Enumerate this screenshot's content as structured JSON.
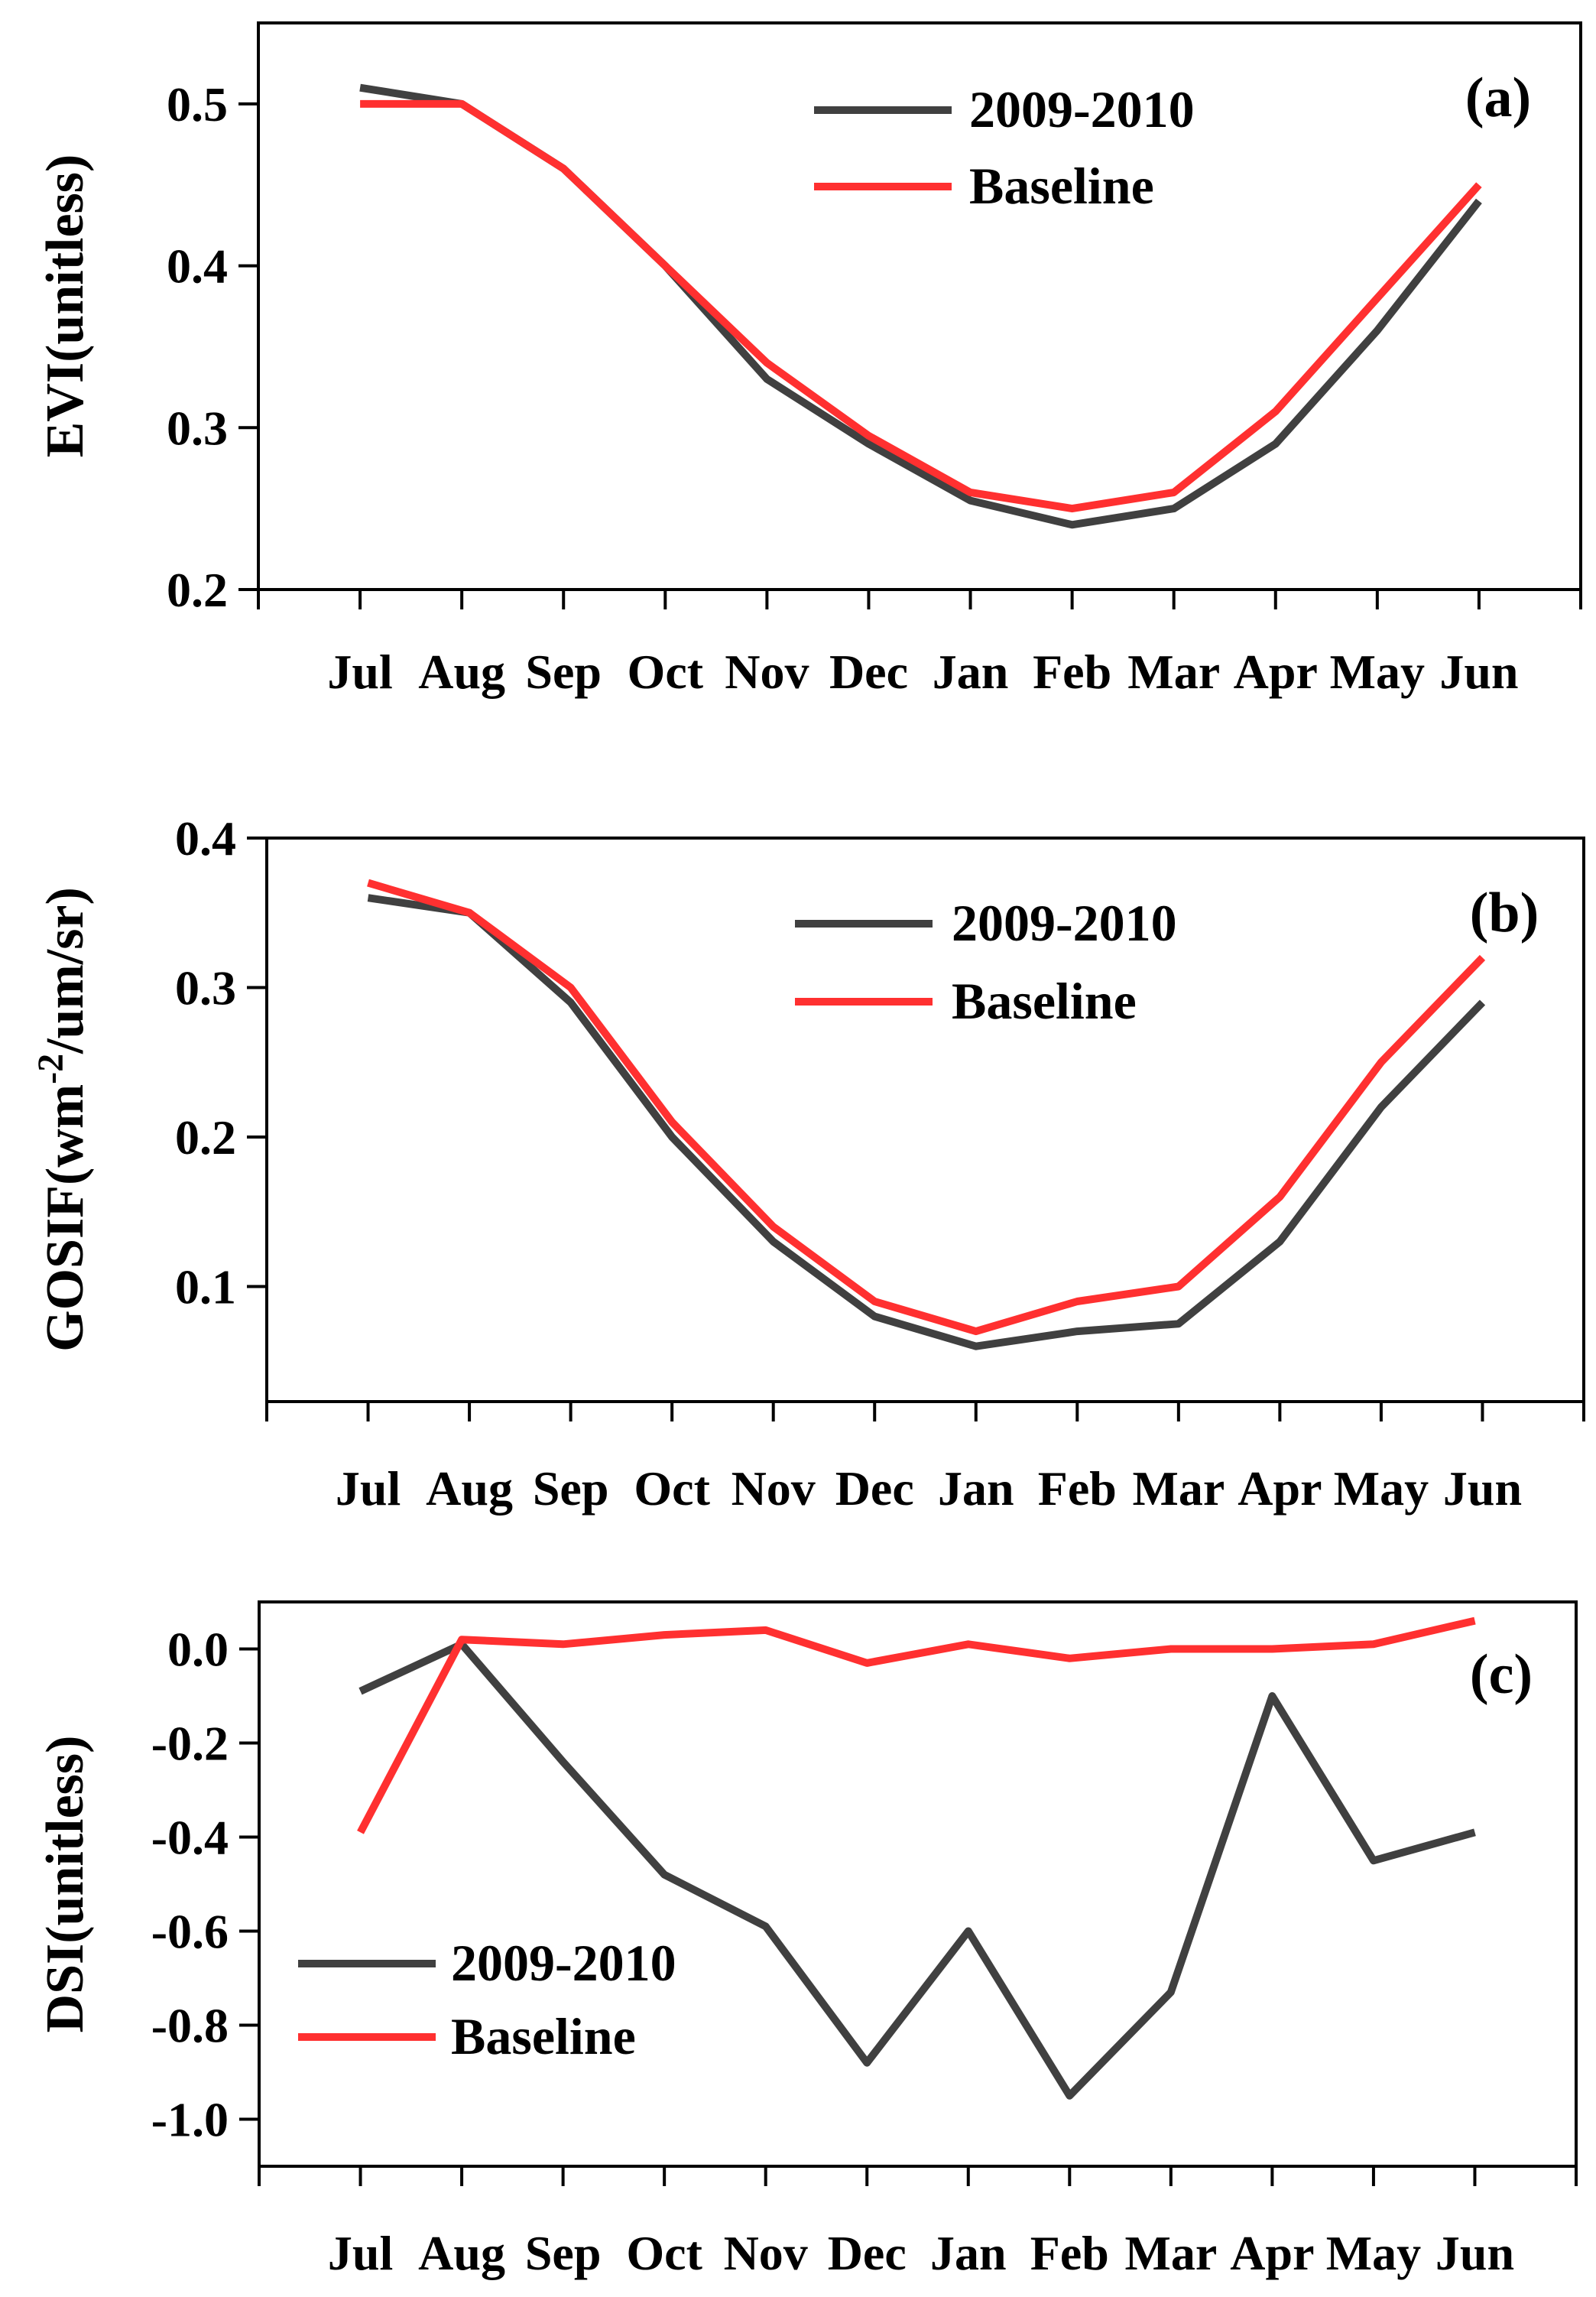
{
  "chart_data": [
    {
      "type": "line",
      "panel_label": "(a)",
      "ylabel": "EVI(unitless)",
      "categories": [
        "Jul",
        "Aug",
        "Sep",
        "Oct",
        "Nov",
        "Dec",
        "Jan",
        "Feb",
        "Mar",
        "Apr",
        "May",
        "Jun"
      ],
      "ylim": [
        0.2,
        0.55
      ],
      "yticks": [
        0.2,
        0.3,
        0.4,
        0.5
      ],
      "ytick_labels": [
        "0.2",
        "0.3",
        "0.4",
        "0.5"
      ],
      "legend_position": "top-center",
      "series": [
        {
          "name": "2009-2010",
          "color": "#404040",
          "values": [
            0.51,
            0.5,
            0.46,
            0.4,
            0.33,
            0.29,
            0.255,
            0.24,
            0.25,
            0.29,
            0.36,
            0.44
          ]
        },
        {
          "name": "Baseline",
          "color": "#ff3030",
          "values": [
            0.5,
            0.5,
            0.46,
            0.4,
            0.34,
            0.295,
            0.26,
            0.25,
            0.26,
            0.31,
            0.38,
            0.45
          ]
        }
      ]
    },
    {
      "type": "line",
      "panel_label": "(b)",
      "ylabel": "GOSIF(wm-2/um/sr)",
      "ylabel_parts": {
        "before": "GOSIF(wm",
        "sup": "-2",
        "after": "/um/sr)"
      },
      "categories": [
        "Jul",
        "Aug",
        "Sep",
        "Oct",
        "Nov",
        "Dec",
        "Jan",
        "Feb",
        "Mar",
        "Apr",
        "May",
        "Jun"
      ],
      "ylim": [
        0.023,
        0.4
      ],
      "yticks": [
        0.1,
        0.2,
        0.3,
        0.4
      ],
      "ytick_labels": [
        "0.1",
        "0.2",
        "0.3",
        "0.4"
      ],
      "legend_position": "top-center",
      "series": [
        {
          "name": "2009-2010",
          "color": "#404040",
          "values": [
            0.36,
            0.35,
            0.29,
            0.2,
            0.13,
            0.08,
            0.06,
            0.07,
            0.075,
            0.13,
            0.22,
            0.29
          ]
        },
        {
          "name": "Baseline",
          "color": "#ff3030",
          "values": [
            0.37,
            0.35,
            0.3,
            0.21,
            0.14,
            0.09,
            0.07,
            0.09,
            0.1,
            0.16,
            0.25,
            0.32
          ]
        }
      ]
    },
    {
      "type": "line",
      "panel_label": "(c)",
      "ylabel": "DSI(unitless)",
      "categories": [
        "Jul",
        "Aug",
        "Sep",
        "Oct",
        "Nov",
        "Dec",
        "Jan",
        "Feb",
        "Mar",
        "Apr",
        "May",
        "Jun"
      ],
      "ylim": [
        -1.1,
        0.1
      ],
      "yticks": [
        -1.0,
        -0.8,
        -0.6,
        -0.4,
        -0.2,
        0.0
      ],
      "ytick_labels": [
        "-1.0",
        "-0.8",
        "-0.6",
        "-0.4",
        "-0.2",
        "0.0"
      ],
      "legend_position": "bottom-left",
      "series": [
        {
          "name": "2009-2010",
          "color": "#404040",
          "values": [
            -0.09,
            0.01,
            -0.24,
            -0.48,
            -0.59,
            -0.88,
            -0.6,
            -0.95,
            -0.73,
            -0.1,
            -0.45,
            -0.39
          ]
        },
        {
          "name": "Baseline",
          "color": "#ff3030",
          "values": [
            -0.39,
            0.02,
            0.01,
            0.03,
            0.04,
            -0.03,
            0.01,
            -0.02,
            0.0,
            0.0,
            0.01,
            0.06
          ]
        }
      ]
    }
  ]
}
